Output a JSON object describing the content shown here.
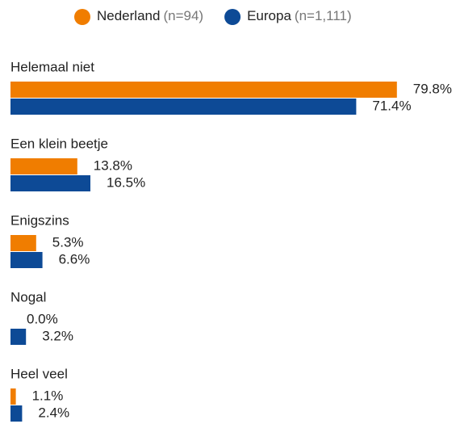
{
  "chart_data": {
    "type": "bar",
    "orientation": "horizontal",
    "categories": [
      "Helemaal niet",
      "Een klein beetje",
      "Enigszins",
      "Nogal",
      "Heel veel"
    ],
    "series": [
      {
        "name": "Nederland",
        "n_label": "(n=94)",
        "color": "#f07d00",
        "values": [
          79.8,
          13.8,
          5.3,
          0.0,
          1.1
        ],
        "value_labels": [
          "79.8%",
          "13.8%",
          "5.3%",
          "0.0%",
          "1.1%"
        ]
      },
      {
        "name": "Europa",
        "n_label": "(n=1,111)",
        "color": "#0d4a96",
        "values": [
          71.4,
          16.5,
          6.6,
          3.2,
          2.4
        ],
        "value_labels": [
          "71.4%",
          "16.5%",
          "6.6%",
          "3.2%",
          "2.4%"
        ]
      }
    ]
  }
}
